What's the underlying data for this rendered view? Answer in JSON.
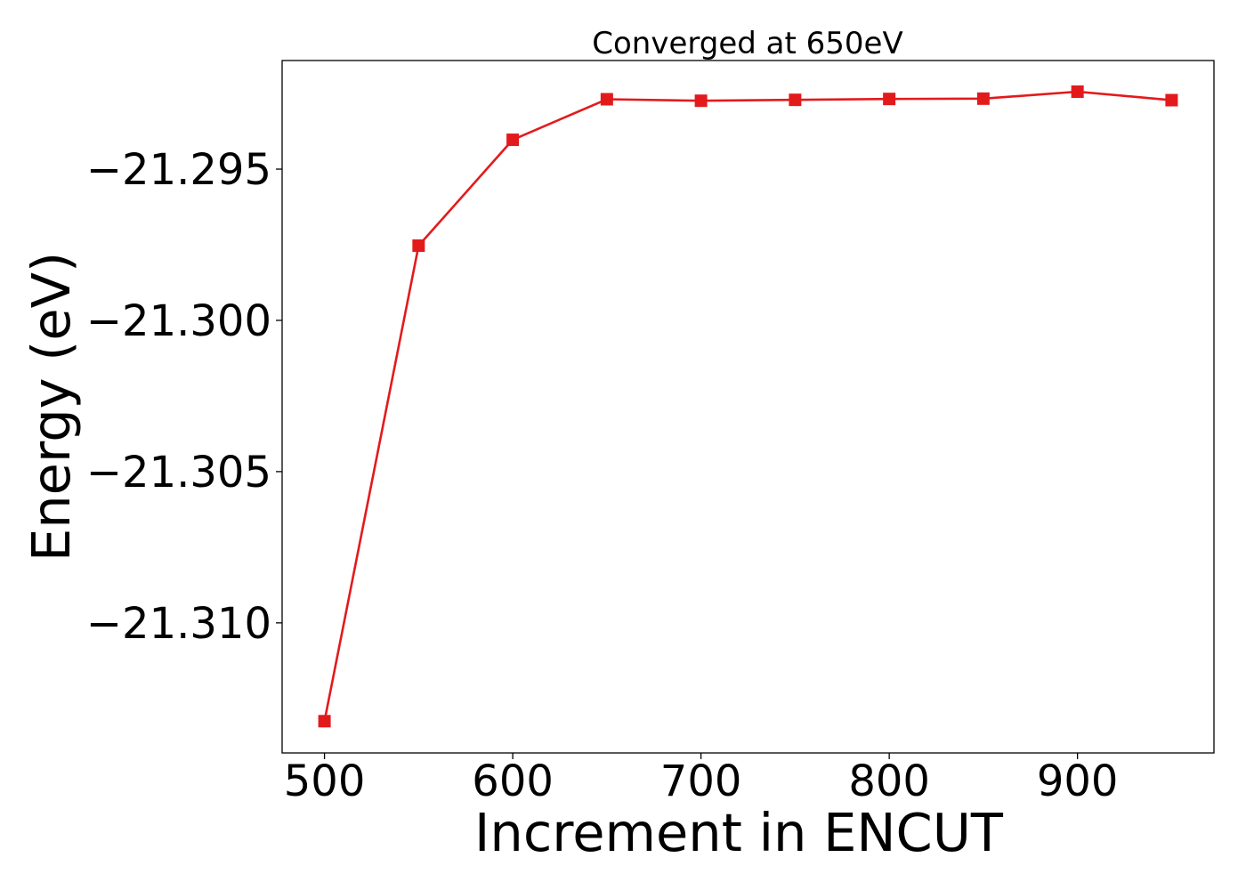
{
  "chart_data": {
    "type": "line",
    "title": "Converged at 650eV",
    "xlabel": "Increment in ENCUT",
    "ylabel": "Energy (eV)",
    "x": [
      500,
      550,
      600,
      650,
      700,
      750,
      800,
      850,
      900,
      950
    ],
    "series": [
      {
        "values": [
          -21.31325,
          -21.29753,
          -21.29403,
          -21.29269,
          -21.29274,
          -21.29271,
          -21.29268,
          -21.29267,
          -21.29244,
          -21.29272
        ],
        "color": "#e31a1c",
        "marker": "square"
      }
    ],
    "xticks": [
      500,
      600,
      700,
      800,
      900
    ],
    "xtick_labels": [
      "500",
      "600",
      "700",
      "800",
      "900"
    ],
    "yticks": [
      -21.295,
      -21.3,
      -21.305,
      -21.31
    ],
    "ytick_labels": [
      "−21.295",
      "−21.300",
      "−21.305",
      "−21.310"
    ],
    "xlim": [
      477.5,
      972.5
    ],
    "ylim": [
      -21.3143,
      -21.29141
    ],
    "grid": false,
    "legend": "none"
  }
}
